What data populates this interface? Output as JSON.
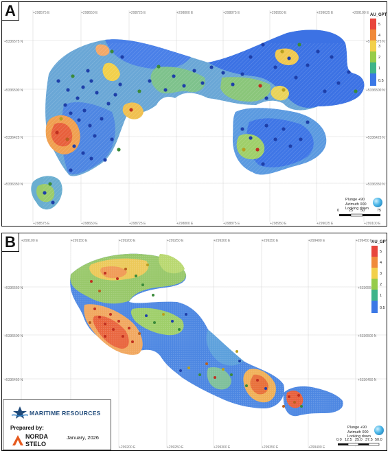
{
  "panel_a": {
    "letter": "A",
    "legend_title": "AU_GPT",
    "legend_labels": [
      "5",
      "4",
      "3",
      "2",
      "1",
      "0.5"
    ],
    "legend_colors": [
      "#e8453c",
      "#f08a3a",
      "#f2d04b",
      "#96cc4a",
      "#3fb48a",
      "#3b78e6"
    ],
    "x_ticks": [
      "+298575 E",
      "+298650 E",
      "+298725 E",
      "+298800 E",
      "+298875 E",
      "+298950 E",
      "+299025 E",
      "+299100 E"
    ],
    "y_ticks": [
      "+5336575 N",
      "+5336500 N",
      "+5336425 N",
      "+5336350 N"
    ],
    "plunge": "Plunge +90",
    "azimuth": "Azimuth 000",
    "looking": "Looking down",
    "scale_labels": [
      "0",
      "25",
      "50",
      "75"
    ]
  },
  "panel_b": {
    "letter": "B",
    "legend_title": "AU_GPT",
    "legend_labels": [
      "5",
      "4",
      "3",
      "2",
      "1",
      "0.5"
    ],
    "legend_colors": [
      "#e8453c",
      "#f08a3a",
      "#f2d04b",
      "#96cc4a",
      "#3fb48a",
      "#3b78e6"
    ],
    "x_ticks": [
      "+299100 E",
      "+299150 E",
      "+299200 E",
      "+299250 E",
      "+299300 E",
      "+299350 E",
      "+299400 E",
      "+299450 E"
    ],
    "y_ticks": [
      "+5336550 N",
      "+5336500 N",
      "+5336450 N"
    ],
    "plunge": "Plunge +90",
    "azimuth": "Azimuth 000",
    "looking": "Looking down",
    "scale_labels": [
      "0.0",
      "12.5",
      "25.0",
      "37.5",
      "50.0"
    ]
  },
  "footer": {
    "company": "MARITIME RESOURCES",
    "prepared_by": "Prepared by:",
    "consultant_line1": "NORDA",
    "consultant_line2": "STELO",
    "date": "January, 2026"
  }
}
